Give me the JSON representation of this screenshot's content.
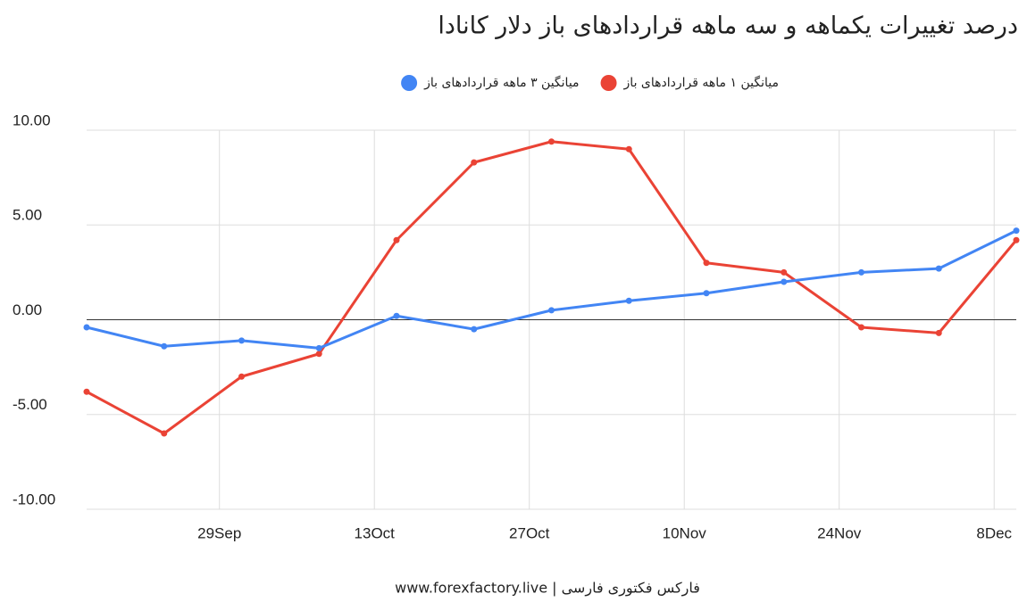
{
  "chart_data": {
    "type": "line",
    "title": "درصد تغییرات یکماهه و سه ماهه قراردادهای باز دلار کانادا",
    "footer": "www.forexfactory.live | فارکس فکتوری فارسی",
    "x": [
      "17Sep",
      "24Sep",
      "1Oct",
      "8Oct",
      "15Oct",
      "22Oct",
      "29Oct",
      "5Nov",
      "12Nov",
      "19Nov",
      "26Nov",
      "3Dec",
      "10Dec"
    ],
    "xlim": [
      "17Sep",
      "10Dec"
    ],
    "xticks": [
      "29Sep",
      "13Oct",
      "27Oct",
      "10Nov",
      "24Nov",
      "8Dec"
    ],
    "series": [
      {
        "name": "میانگین ۱ ماهه قراردادهای باز",
        "color": "#ea4335",
        "values": [
          -3.8,
          -6.0,
          -3.0,
          -1.8,
          4.2,
          8.3,
          9.4,
          9.0,
          3.0,
          2.5,
          -0.4,
          -0.7,
          4.2
        ]
      },
      {
        "name": "میانگین ۳ ماهه قراردادهای باز",
        "color": "#4285f4",
        "values": [
          -0.4,
          -1.4,
          -1.1,
          -1.5,
          0.2,
          -0.5,
          0.5,
          1.0,
          1.4,
          2.0,
          2.5,
          2.7,
          4.7
        ]
      }
    ],
    "ylim": [
      -10,
      10
    ],
    "yticks": [
      {
        "value": -10,
        "label": "-10.00"
      },
      {
        "value": -5,
        "label": "-5.00"
      },
      {
        "value": 0,
        "label": "0.00"
      },
      {
        "value": 5,
        "label": "5.00"
      },
      {
        "value": 10,
        "label": "10.00"
      }
    ],
    "grid": true,
    "legend": "top"
  }
}
